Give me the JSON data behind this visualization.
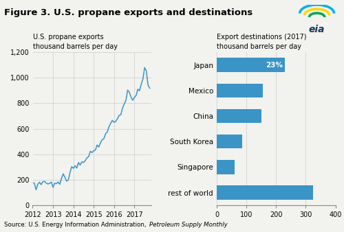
{
  "title": "Figure 3. U.S. propane exports and destinations",
  "line_ylabel1": "U.S. propane exports",
  "line_ylabel2": "thousand barrels per day",
  "bar_ylabel1": "Export destinations (2017)",
  "bar_ylabel2": "thousand barrels per day",
  "line_color": "#3a94c5",
  "bar_color": "#3a94c5",
  "line_ylim": [
    0,
    1200
  ],
  "line_yticks": [
    0,
    200,
    400,
    600,
    800,
    1000,
    1200
  ],
  "source_normal": "Source: U.S. Energy Information Administration, ",
  "source_italic": "Petroleum Supply Monthly",
  "bar_categories": [
    "Japan",
    "Mexico",
    "China",
    "South Korea",
    "Singapore",
    "rest of world"
  ],
  "bar_values": [
    230,
    155,
    150,
    85,
    60,
    325
  ],
  "bar_xlim": [
    0,
    400
  ],
  "bar_xticks": [
    0,
    100,
    200,
    300,
    400
  ],
  "japan_label": "23%",
  "background_color": "#f2f2ee",
  "grid_color": "#cccccc",
  "time_points": [
    155,
    160,
    150,
    165,
    170,
    175,
    180,
    185,
    175,
    170,
    165,
    160,
    158,
    155,
    165,
    175,
    185,
    210,
    220,
    240,
    225,
    230,
    250,
    260,
    270,
    280,
    290,
    310,
    320,
    330,
    340,
    360,
    370,
    390,
    400,
    410,
    420,
    440,
    450,
    470,
    480,
    520,
    540,
    570,
    590,
    620,
    650,
    660,
    640,
    660,
    680,
    700,
    720,
    750,
    780,
    820,
    860,
    870,
    850,
    830,
    850,
    870,
    890,
    910,
    950,
    1000,
    1060,
    1080,
    950,
    920
  ]
}
